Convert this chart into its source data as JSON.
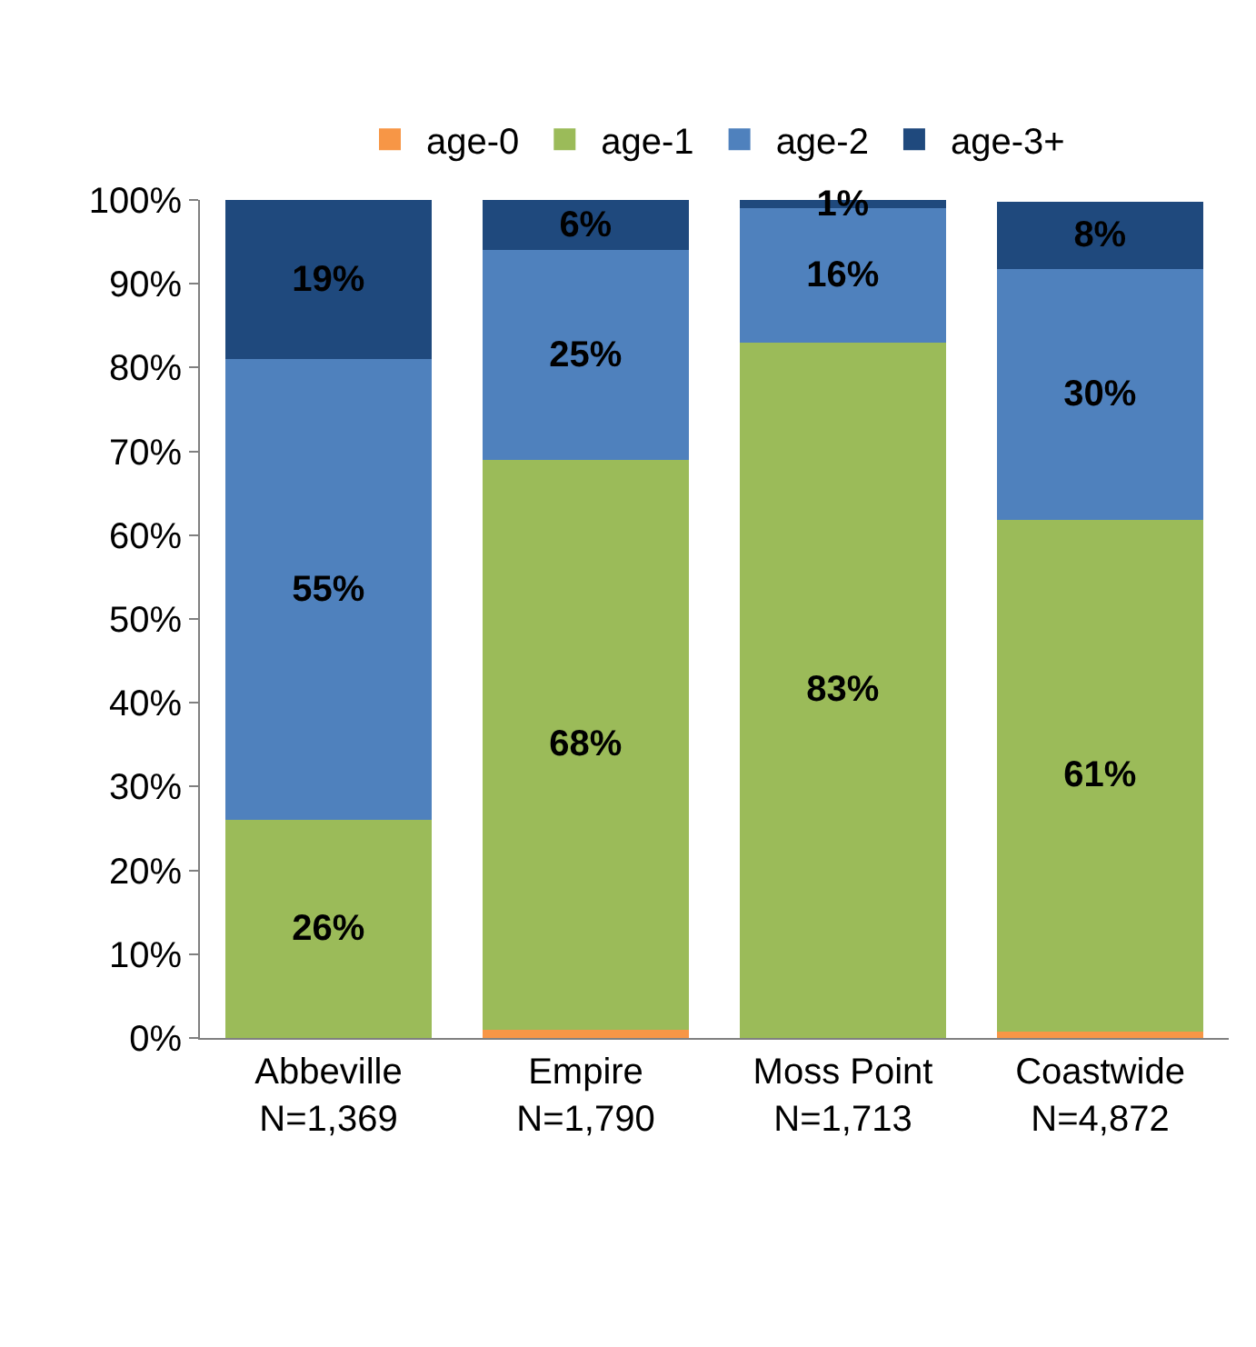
{
  "chart_data": {
    "type": "bar",
    "stacked": true,
    "categories": [
      "Abbeville\nN=1,369",
      "Empire\nN=1,790",
      "Moss Point\nN=1,713",
      "Coastwide\nN=4,872"
    ],
    "series": [
      {
        "name": "age-0",
        "color": "#f79646",
        "values": [
          0,
          1,
          0,
          0.8
        ],
        "value_labels": [
          null,
          null,
          null,
          null
        ]
      },
      {
        "name": "age-1",
        "color": "#9bbb59",
        "values": [
          26,
          68,
          83,
          61
        ],
        "value_labels": [
          "26%",
          "68%",
          "83%",
          "61%"
        ]
      },
      {
        "name": "age-2",
        "color": "#4f81bd",
        "values": [
          55,
          25,
          16,
          30
        ],
        "value_labels": [
          "55%",
          "25%",
          "16%",
          "30%"
        ]
      },
      {
        "name": "age-3+",
        "color": "#1f497d",
        "values": [
          19,
          6,
          1,
          8
        ],
        "value_labels": [
          "19%",
          "6%",
          "1%",
          "8%"
        ]
      }
    ],
    "ylim": [
      0,
      100
    ],
    "yticks": [
      {
        "value": 0,
        "label": "0%"
      },
      {
        "value": 10,
        "label": "10%"
      },
      {
        "value": 20,
        "label": "20%"
      },
      {
        "value": 30,
        "label": "30%"
      },
      {
        "value": 40,
        "label": "40%"
      },
      {
        "value": 50,
        "label": "50%"
      },
      {
        "value": 60,
        "label": "60%"
      },
      {
        "value": 70,
        "label": "70%"
      },
      {
        "value": 80,
        "label": "80%"
      },
      {
        "value": 90,
        "label": "90%"
      },
      {
        "value": 100,
        "label": "100%"
      }
    ],
    "legend": "top"
  }
}
